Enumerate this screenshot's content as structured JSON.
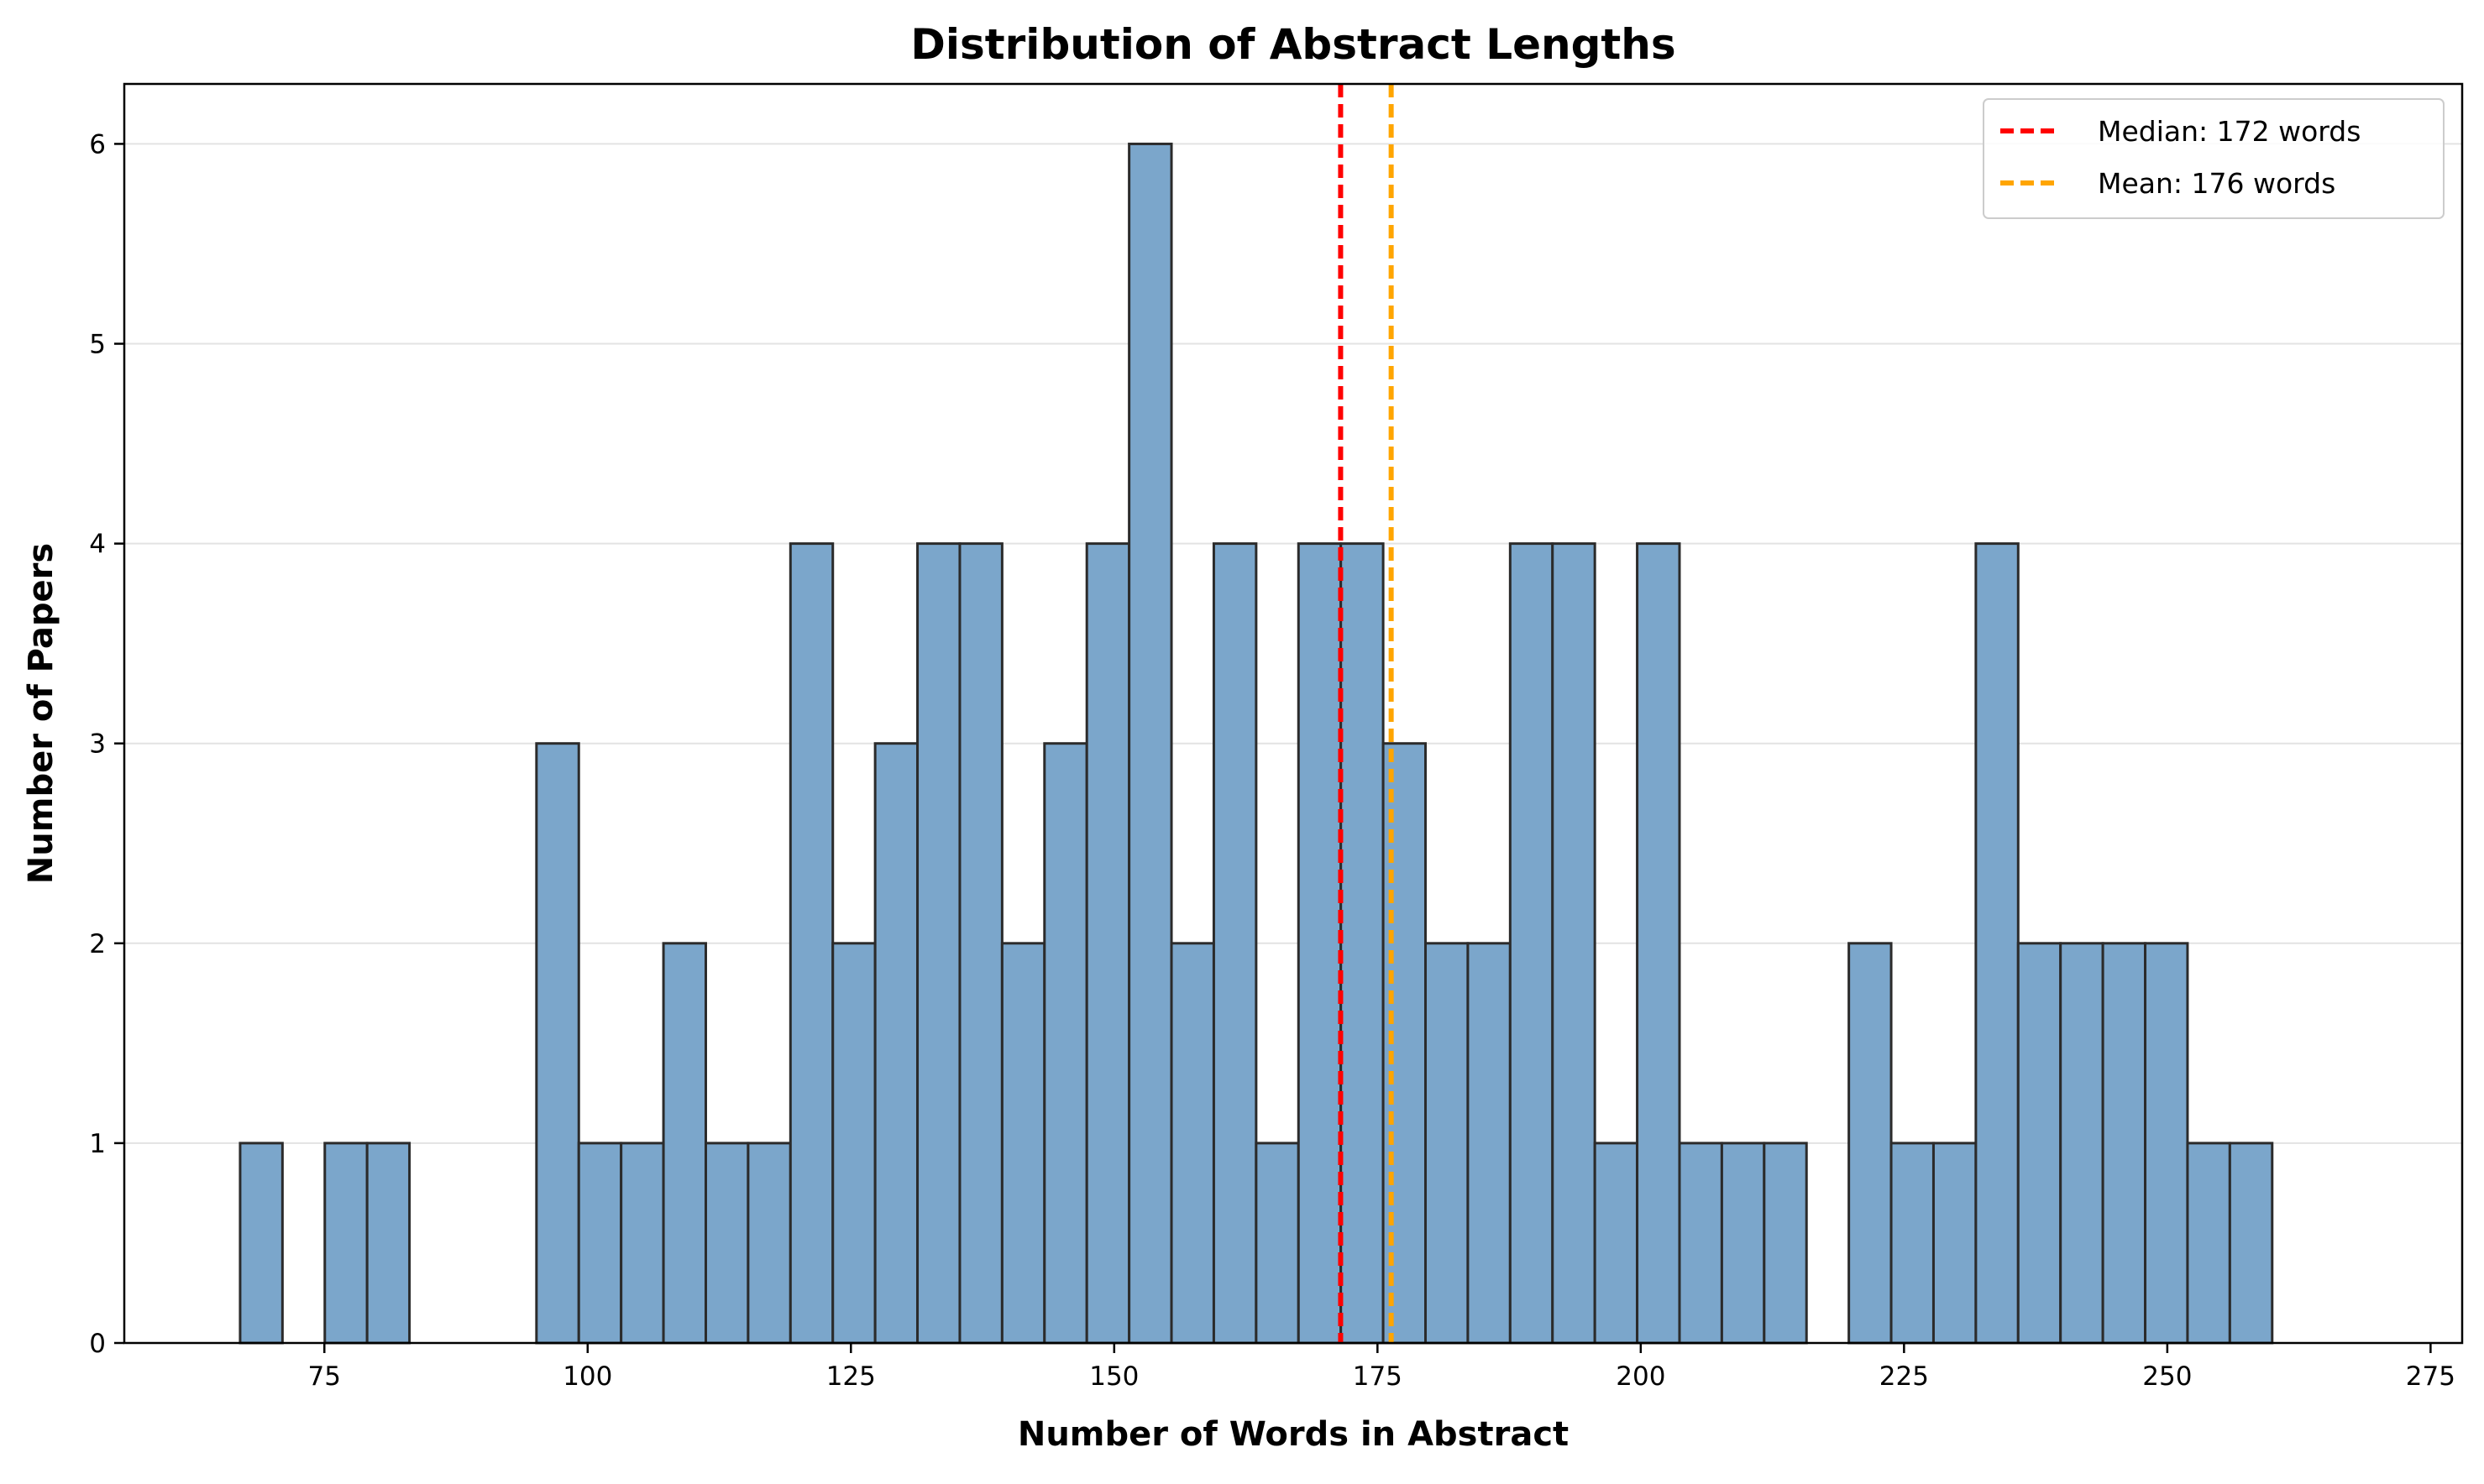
{
  "chart_data": {
    "type": "bar",
    "title": "Distribution of Abstract Lengths",
    "xlabel": "Number of Words in Abstract",
    "ylabel": "Number of Papers",
    "xlim": [
      56,
      278
    ],
    "ylim": [
      0,
      6.3
    ],
    "xticks": [
      75,
      100,
      125,
      150,
      175,
      200,
      225,
      250,
      275
    ],
    "yticks": [
      0,
      1,
      2,
      3,
      4,
      5,
      6
    ],
    "bin_start": 67,
    "bin_width": 4.02,
    "counts": [
      1,
      0,
      1,
      1,
      0,
      0,
      0,
      3,
      1,
      1,
      2,
      1,
      1,
      4,
      2,
      3,
      4,
      4,
      2,
      3,
      4,
      6,
      2,
      4,
      1,
      4,
      4,
      3,
      2,
      2,
      4,
      4,
      1,
      4,
      1,
      1,
      1,
      0,
      2,
      1,
      1,
      4,
      2,
      2,
      2,
      2,
      1,
      1
    ],
    "bar_color": "#7ba6cb",
    "bar_edge_color": "#2b2b2b",
    "grid": "y",
    "legend_position": "top-right",
    "reference_lines": [
      {
        "label": "Median: 172 words",
        "value": 171.5,
        "color": "#ff0000"
      },
      {
        "label": "Mean: 176 words",
        "value": 176.3,
        "color": "#ffa500"
      }
    ]
  }
}
